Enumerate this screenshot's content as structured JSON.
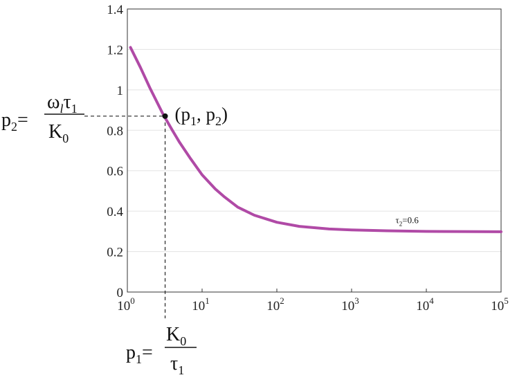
{
  "chart_data": {
    "type": "line",
    "x_scale": "log",
    "xlim": [
      1,
      100000
    ],
    "ylim": [
      0,
      1.4
    ],
    "grid": "horizontal",
    "x_ticks": [
      {
        "base": "10",
        "exp": "0"
      },
      {
        "base": "10",
        "exp": "1"
      },
      {
        "base": "10",
        "exp": "2"
      },
      {
        "base": "10",
        "exp": "3"
      },
      {
        "base": "10",
        "exp": "4"
      },
      {
        "base": "10",
        "exp": "5"
      }
    ],
    "y_ticks": [
      "0",
      "0.2",
      "0.4",
      "0.6",
      "0.8",
      "1",
      "1.2",
      "1.4"
    ],
    "series": [
      {
        "name": "τ₂=0.6",
        "color": "#b04aa6",
        "x": [
          1.1,
          1.5,
          2,
          3,
          4,
          5,
          7,
          10,
          15,
          20,
          30,
          50,
          100,
          200,
          500,
          1000,
          3000,
          10000,
          30000,
          100000
        ],
        "y": [
          1.21,
          1.11,
          1.01,
          0.88,
          0.8,
          0.74,
          0.66,
          0.58,
          0.51,
          0.47,
          0.42,
          0.38,
          0.345,
          0.325,
          0.312,
          0.307,
          0.303,
          0.3,
          0.299,
          0.298
        ]
      }
    ],
    "series_label": {
      "base": "τ",
      "sub": "2",
      "rest": "=0.6"
    },
    "point": {
      "x": 3.2,
      "y": 0.87,
      "label": "(p1, p2)",
      "label_parts": {
        "open": "(p",
        "sub1": "1",
        "mid": ", p",
        "sub2": "2",
        "close": ")"
      }
    },
    "y_annotation": {
      "lhs": "p",
      "lhs_sub": "2",
      "eq": "=",
      "numerator": "ω",
      "num_sub": "l",
      "num_tail": "τ",
      "num_tail_sub": "1",
      "denominator": "K",
      "den_sub": "0"
    },
    "x_annotation": {
      "lhs": "p",
      "lhs_sub": "1",
      "eq": "=",
      "numerator": "K",
      "num_sub": "0",
      "denominator": "τ",
      "den_sub": "1"
    }
  }
}
